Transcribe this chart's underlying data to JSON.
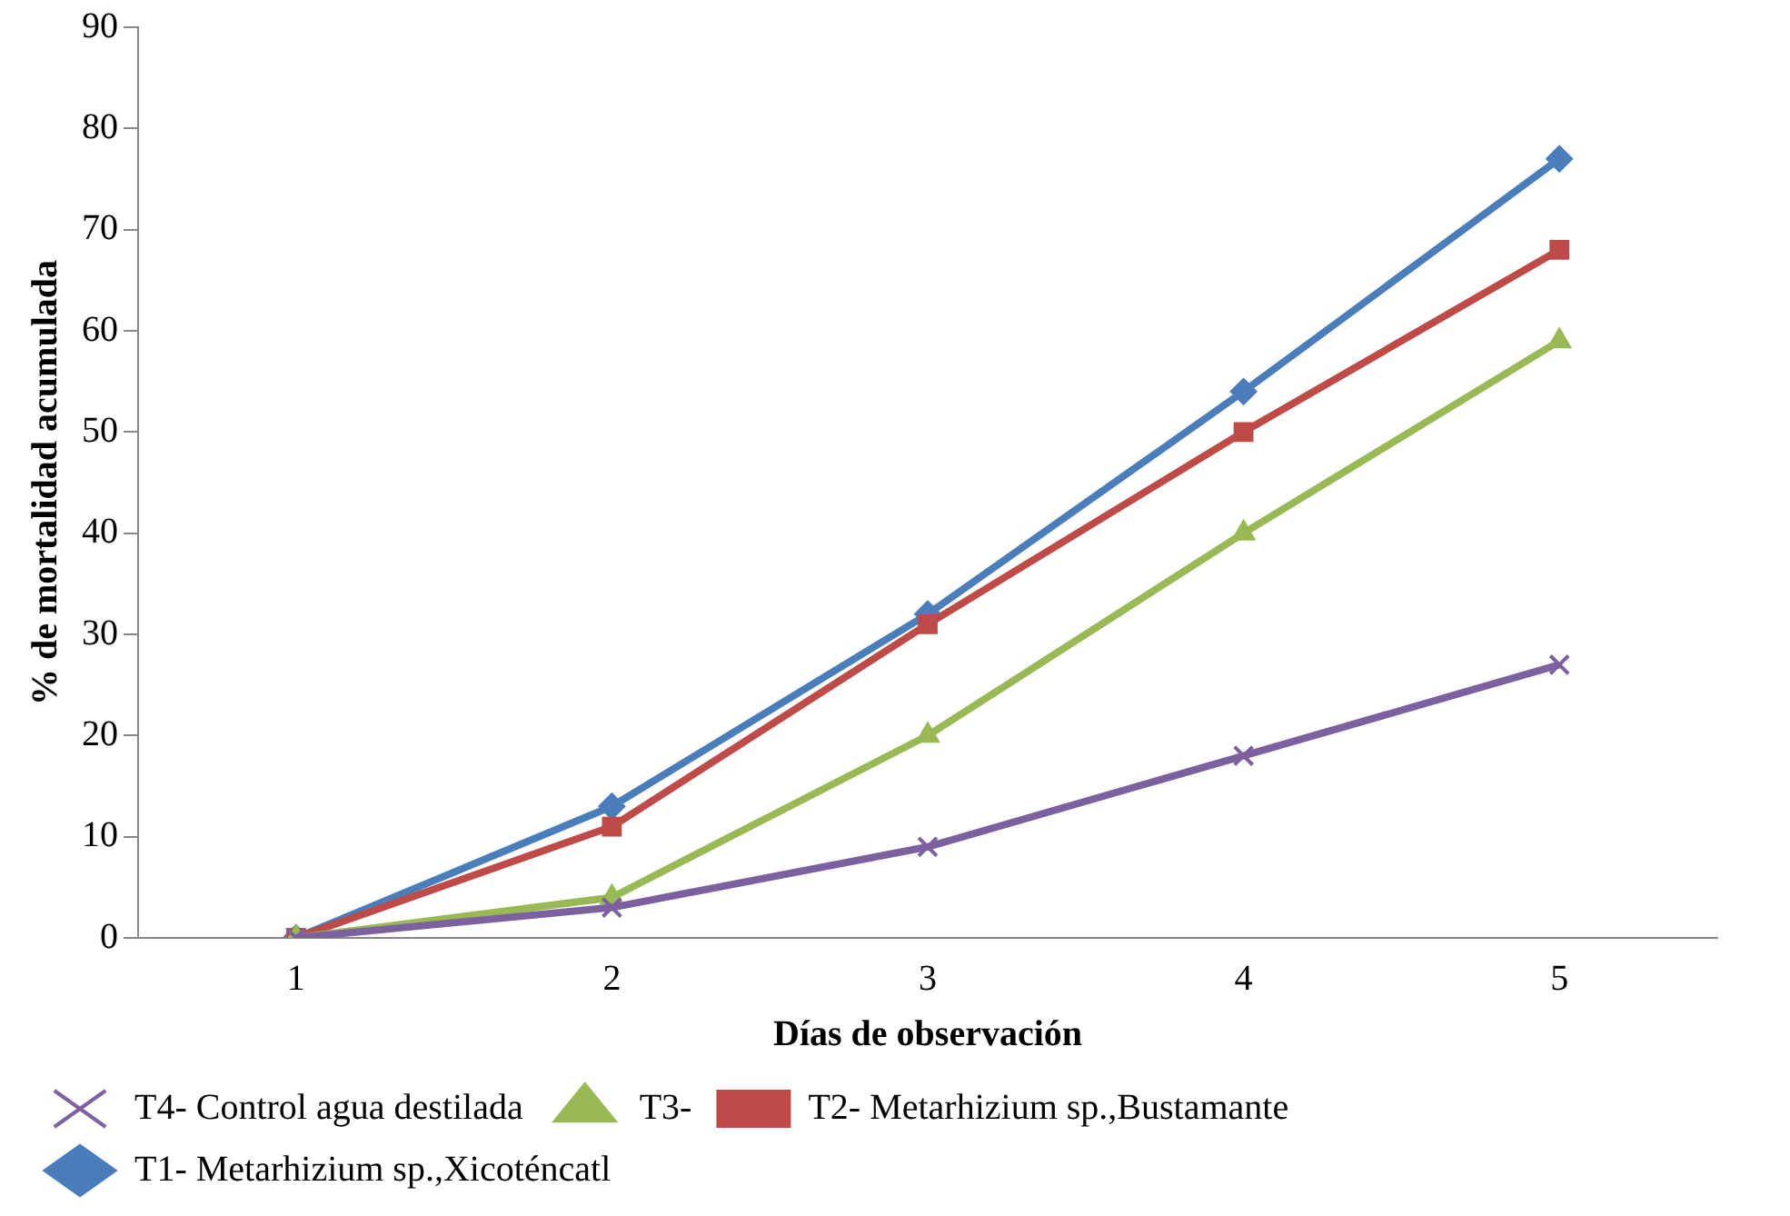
{
  "chart_data": {
    "type": "line",
    "xlabel": "Días de observación",
    "ylabel": "% de mortalidad acumulada",
    "categories": [
      "1",
      "2",
      "3",
      "4",
      "5"
    ],
    "ylim": [
      0,
      90
    ],
    "yticks": [
      0,
      10,
      20,
      30,
      40,
      50,
      60,
      70,
      80,
      90
    ],
    "grid": false,
    "legend": "bottom",
    "line_style": "solid",
    "series": [
      {
        "name": "T1- Metarhizium sp.,Xicoténcatl",
        "color": "#4a7ebb",
        "marker": "diamond",
        "values": [
          0,
          13,
          32,
          54,
          77
        ]
      },
      {
        "name": "T2- Metarhizium sp.,Bustamante",
        "color": "#be4b48",
        "marker": "square",
        "values": [
          0,
          11,
          31,
          50,
          68
        ]
      },
      {
        "name": "T3-",
        "color": "#98b954",
        "marker": "triangle",
        "values": [
          0,
          4,
          20,
          40,
          59
        ]
      },
      {
        "name": "T4- Control agua destilada",
        "color": "#7d60a0",
        "marker": "cross",
        "values": [
          0,
          3,
          9,
          18,
          27
        ]
      }
    ]
  }
}
